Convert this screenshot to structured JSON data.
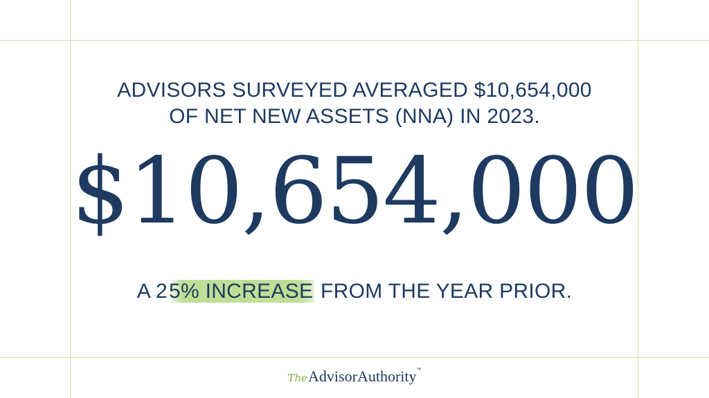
{
  "headline": {
    "line1": "ADVISORS SURVEYED AVERAGED $10,654,000",
    "line2": "OF NET NEW ASSETS (NNA) IN 2023."
  },
  "big_number": "$10,654,000",
  "tagline": {
    "prefix": "A 2",
    "highlight": "5% INCREASE",
    "suffix": " FROM THE YEAR PRIOR."
  },
  "logo": {
    "the": "The",
    "advisor": "Advisor",
    "authority": "Authority",
    "tm": "™"
  },
  "colors": {
    "text": "#1e3a60",
    "accent": "#bfdf96",
    "guides": "#c9e2a6"
  }
}
